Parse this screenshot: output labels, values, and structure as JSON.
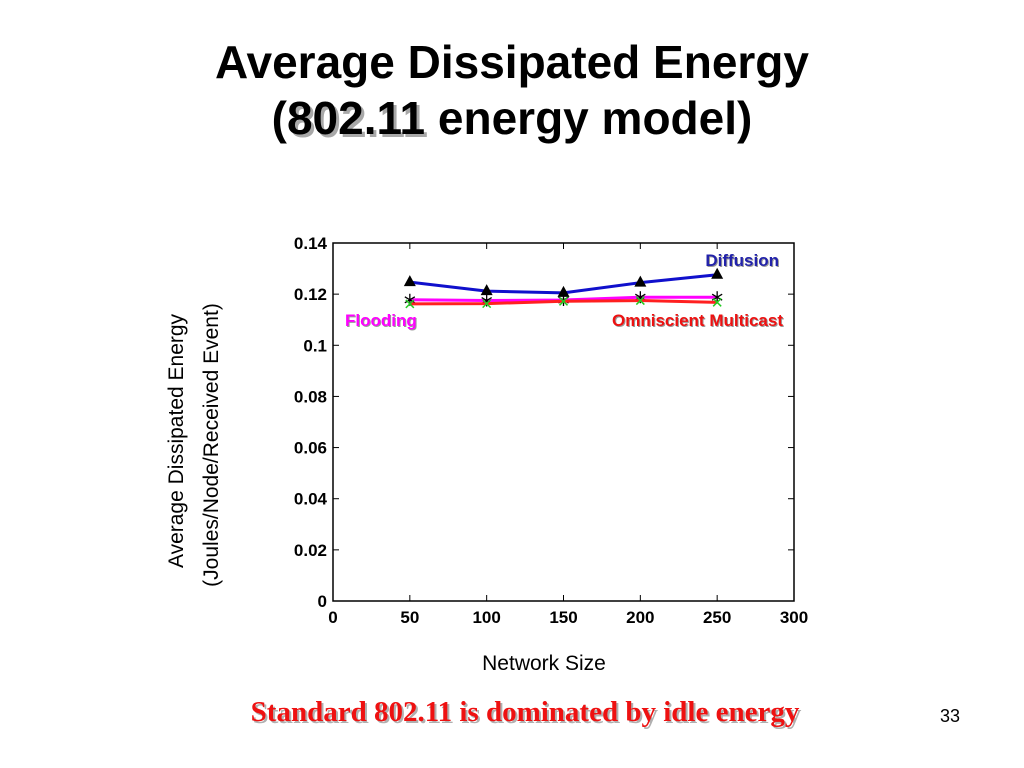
{
  "slide": {
    "title_line1": "Average Dissipated Energy",
    "title_line2_prefix": "(",
    "title_line2_highlight": "802.11",
    "title_line2_suffix": " energy model)",
    "footer_note": "Standard 802.11 is dominated by idle energy",
    "page_number": "33"
  },
  "chart_data": {
    "type": "line",
    "title": "",
    "xlabel": "Network Size",
    "ylabel_line1": "Average Dissipated Energy",
    "ylabel_line2": "(Joules/Node/Received Event)",
    "xlim": [
      0,
      300
    ],
    "ylim": [
      0,
      0.14
    ],
    "xticks": [
      0,
      50,
      100,
      150,
      200,
      250,
      300
    ],
    "yticks": [
      0,
      0.02,
      0.04,
      0.06,
      0.08,
      0.1,
      0.12,
      0.14
    ],
    "xtick_labels": [
      "0",
      "50",
      "100",
      "150",
      "200",
      "250",
      "300"
    ],
    "ytick_labels": [
      "0",
      "0.02",
      "0.04",
      "0.06",
      "0.08",
      "0.1",
      "0.12",
      "0.14"
    ],
    "grid": false,
    "series": [
      {
        "name": "Diffusion",
        "color": "#1010cc",
        "label_color": "#2222aa",
        "marker": "triangle",
        "x": [
          50,
          100,
          150,
          200,
          250
        ],
        "y": [
          0.1247,
          0.1212,
          0.1205,
          0.1245,
          0.1276
        ]
      },
      {
        "name": "Flooding",
        "color": "#ff00ff",
        "label_color": "#ff00ff",
        "marker": "asterisk",
        "x": [
          50,
          100,
          150,
          200,
          250
        ],
        "y": [
          0.1178,
          0.1175,
          0.1177,
          0.1188,
          0.1188
        ]
      },
      {
        "name": "Omniscient Multicast",
        "color": "#ff2020",
        "label_color": "#ee1111",
        "marker": "x",
        "x": [
          50,
          100,
          150,
          200,
          250
        ],
        "y": [
          0.1162,
          0.1163,
          0.1172,
          0.1175,
          0.1168
        ]
      }
    ]
  }
}
